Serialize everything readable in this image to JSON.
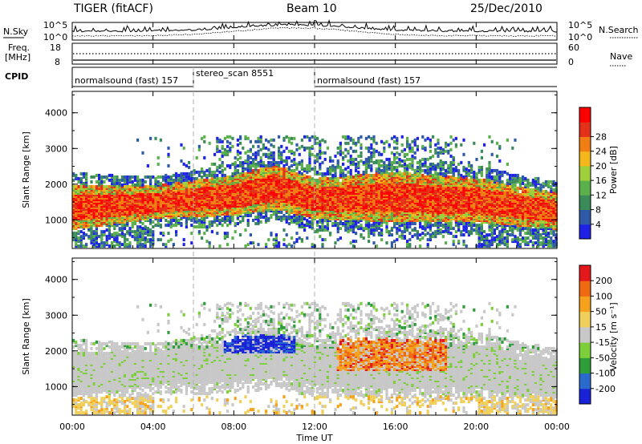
{
  "header": {
    "radar": "TIGER (fitACF)",
    "beam": "Beam 10",
    "date": "25/Dec/2010"
  },
  "top_panels": {
    "nsky_label": "N.Sky",
    "nsearch_label": "N.Search",
    "nsky_ticks": [
      "10^5",
      "10^0"
    ],
    "nsearch_ticks": [
      "10^5",
      "10^0"
    ],
    "freq_label": "Freq.",
    "freq_unit": "[MHz]",
    "freq_ticks": [
      "18",
      "8"
    ],
    "nave_label": "Nave",
    "nave_ticks": [
      "60",
      "0"
    ],
    "cpid_label": "CPID",
    "modes": [
      {
        "name": "normalsound (fast) 157",
        "start": 0,
        "end": 6
      },
      {
        "name": "stereo_scan 8551",
        "start": 6,
        "end": 12
      },
      {
        "name": "normalsound (fast) 157",
        "start": 12,
        "end": 24
      }
    ]
  },
  "chart_data": [
    {
      "type": "heatmap",
      "name": "power",
      "ylabel": "Slant Range [km]",
      "xlabel": "",
      "ylim": [
        200,
        4600
      ],
      "y_ticks": [
        1000,
        2000,
        3000,
        4000
      ],
      "colorbar": {
        "label": "Power [dB]",
        "ticks": [
          "4",
          "8",
          "12",
          "16",
          "20",
          "24",
          "28"
        ],
        "colors": [
          "#1e22e6",
          "#2e5aa8",
          "#3a8a5a",
          "#5ab04a",
          "#9fcf3a",
          "#f5b81c",
          "#f07e12",
          "#e4321a",
          "#ff0000"
        ]
      },
      "echo_band_km": [
        {
          "time": 0,
          "low": 700,
          "high": 1900
        },
        {
          "time": 4,
          "low": 1000,
          "high": 1900
        },
        {
          "time": 8,
          "low": 1100,
          "high": 2200
        },
        {
          "time": 10,
          "low": 1250,
          "high": 2500
        },
        {
          "time": 12,
          "low": 1000,
          "high": 2100
        },
        {
          "time": 16,
          "low": 900,
          "high": 2300
        },
        {
          "time": 20,
          "low": 900,
          "high": 2100
        },
        {
          "time": 24,
          "low": 700,
          "high": 1700
        }
      ]
    },
    {
      "type": "heatmap",
      "name": "velocity",
      "ylabel": "Slant Range [km]",
      "xlabel": "Time UT",
      "ylim": [
        200,
        4600
      ],
      "y_ticks": [
        1000,
        2000,
        3000,
        4000
      ],
      "x_ticks": [
        "00:00",
        "04:00",
        "08:00",
        "12:00",
        "16:00",
        "20:00",
        "00:00"
      ],
      "xlim_hours": [
        0,
        24
      ],
      "colorbar": {
        "label": "Velocity [m s⁻¹]",
        "ticks": [
          "200",
          "100",
          "50",
          "15",
          "-15",
          "-50",
          "-100",
          "-200"
        ],
        "colors": [
          "#1a22d8",
          "#2a6acc",
          "#2e9e3a",
          "#7ccf3a",
          "#c8c8c8",
          "#f0d05a",
          "#f7a21c",
          "#f06a12",
          "#e4181a"
        ]
      }
    }
  ]
}
